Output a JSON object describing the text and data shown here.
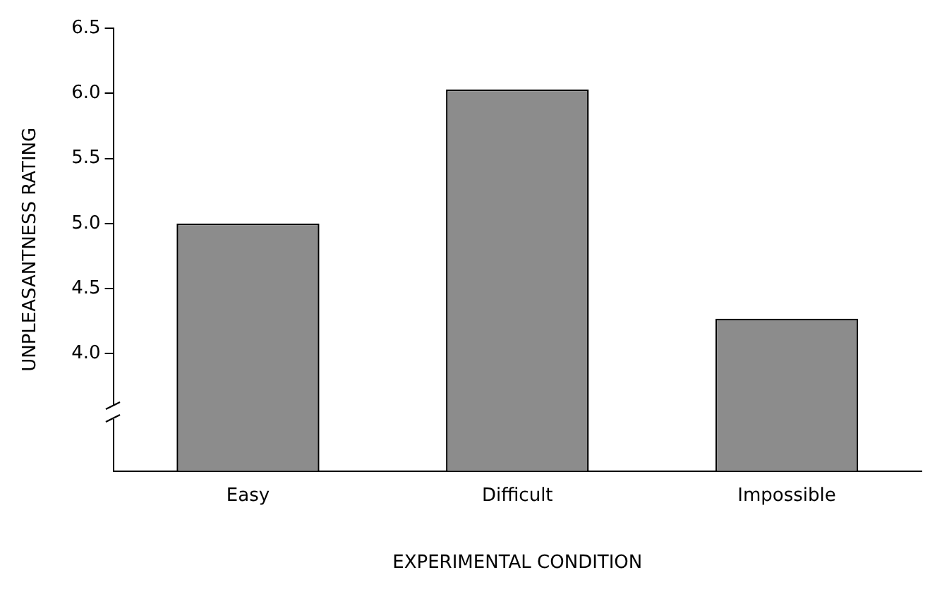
{
  "chart_data": {
    "type": "bar",
    "categories": [
      "Easy",
      "Difficult",
      "Impossible"
    ],
    "values": [
      5.0,
      6.03,
      4.27
    ],
    "color": "#8c8c8c",
    "xlabel": "EXPERIMENTAL CONDITION",
    "ylabel": "UNPLEASANTNESS RATING",
    "ylim": [
      3.1,
      6.5
    ],
    "yticks": [
      {
        "value": 4.0,
        "label": "4.0"
      },
      {
        "value": 4.5,
        "label": "4.5"
      },
      {
        "value": 5.0,
        "label": "5.0"
      },
      {
        "value": 5.5,
        "label": "5.5"
      },
      {
        "value": 6.0,
        "label": "6.0"
      },
      {
        "value": 6.5,
        "label": "6.5"
      }
    ],
    "grid": false,
    "legend": false
  }
}
